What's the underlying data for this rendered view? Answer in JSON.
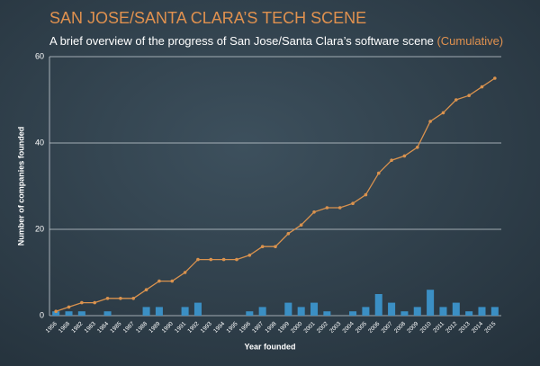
{
  "chart_data": {
    "type": "combo",
    "title": "SAN JOSE/SANTA CLARA’S TECH SCENE",
    "subtitle": "A brief overview of the progress of San Jose/Santa Clara’s software scene",
    "subtitle_note": "(Cumulative)",
    "x_label": "Year founded",
    "y_label": "Number of companies founded",
    "categories": [
      "1956",
      "1968",
      "1982",
      "1983",
      "1984",
      "1985",
      "1987",
      "1988",
      "1989",
      "1990",
      "1991",
      "1992",
      "1993",
      "1994",
      "1995",
      "1996",
      "1997",
      "1998",
      "1999",
      "2000",
      "2001",
      "2002",
      "2003",
      "2004",
      "2005",
      "2006",
      "2007",
      "2008",
      "2009",
      "2010",
      "2011",
      "2012",
      "2013",
      "2014",
      "2015"
    ],
    "series": [
      {
        "name": "Companies founded",
        "type": "bar",
        "color": "#3b8fc4",
        "values": [
          1,
          1,
          1,
          0,
          1,
          0,
          0,
          2,
          2,
          0,
          2,
          3,
          0,
          0,
          0,
          1,
          2,
          0,
          3,
          2,
          3,
          1,
          0,
          1,
          2,
          5,
          3,
          1,
          2,
          6,
          2,
          3,
          1,
          2,
          2
        ]
      },
      {
        "name": "Cumulative",
        "type": "line",
        "color": "#d9924e",
        "values": [
          1,
          2,
          3,
          3,
          4,
          4,
          4,
          6,
          8,
          8,
          10,
          13,
          13,
          13,
          13,
          14,
          16,
          16,
          19,
          21,
          24,
          25,
          25,
          26,
          28,
          33,
          36,
          37,
          39,
          45,
          47,
          50,
          51,
          53,
          55
        ]
      }
    ],
    "ylim": [
      0,
      60
    ],
    "yticks": [
      0,
      20,
      40,
      60
    ],
    "grid": true
  }
}
